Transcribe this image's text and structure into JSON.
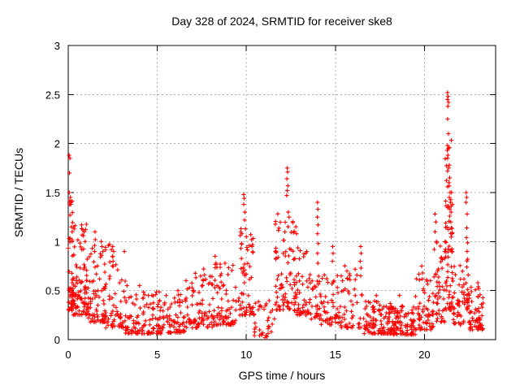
{
  "chart_data": {
    "type": "scatter",
    "title": "Day 328 of 2024, SRMTID for receiver ske8",
    "xlabel": "GPS time / hours",
    "ylabel": "SRMTID / TECUs",
    "xlim": [
      0,
      24
    ],
    "ylim": [
      0,
      3
    ],
    "xticks": [
      [
        0,
        "0"
      ],
      [
        5,
        "5"
      ],
      [
        10,
        "10"
      ],
      [
        15,
        "15"
      ],
      [
        20,
        "20"
      ]
    ],
    "yticks": [
      [
        0,
        "0"
      ],
      [
        0.5,
        "0.5"
      ],
      [
        1,
        "1"
      ],
      [
        1.5,
        "1.5"
      ],
      [
        2,
        "2"
      ],
      [
        2.5,
        "2.5"
      ],
      [
        3,
        "3"
      ]
    ],
    "grid": true,
    "legend_position": "none",
    "marker": {
      "shape": "plus",
      "size": 5,
      "color": "#ff0000"
    },
    "grid_color": "#ababab",
    "axis_color": "#000000",
    "background": "#ffffff",
    "seed": 328,
    "outlier_points": [
      [
        0.05,
        1.88
      ],
      [
        0.09,
        1.85
      ],
      [
        0.07,
        1.7
      ],
      [
        0.06,
        1.5
      ],
      [
        0.12,
        1.45
      ],
      [
        0.1,
        1.42
      ],
      [
        0.16,
        1.4
      ],
      [
        0.14,
        1.38
      ],
      [
        0.1,
        1.27
      ],
      [
        0.18,
        1.15
      ],
      [
        0.22,
        1.1
      ],
      [
        0.75,
        1.17
      ],
      [
        0.82,
        1.12
      ],
      [
        0.9,
        1.1
      ],
      [
        0.85,
        1.06
      ],
      [
        0.95,
        1.0
      ],
      [
        1.5,
        1.1
      ],
      [
        1.52,
        1.02
      ],
      [
        1.48,
        0.96
      ],
      [
        1.85,
        1.0
      ],
      [
        1.9,
        0.95
      ],
      [
        1.95,
        0.9
      ],
      [
        1.88,
        0.86
      ],
      [
        2.5,
        0.95
      ],
      [
        2.55,
        0.9
      ],
      [
        2.48,
        0.85
      ],
      [
        2.52,
        0.8
      ],
      [
        3.3,
        0.55
      ],
      [
        4.0,
        0.55
      ],
      [
        4.5,
        0.45
      ],
      [
        5.5,
        0.45
      ],
      [
        6.3,
        0.46
      ],
      [
        7.6,
        0.72
      ],
      [
        7.65,
        0.66
      ],
      [
        7.58,
        0.6
      ],
      [
        8.25,
        0.85
      ],
      [
        8.3,
        0.78
      ],
      [
        9.7,
        1.13
      ],
      [
        9.75,
        1.08
      ],
      [
        9.85,
        1.48
      ],
      [
        9.88,
        1.44
      ],
      [
        9.85,
        1.38
      ],
      [
        9.92,
        1.3
      ],
      [
        9.9,
        1.22
      ],
      [
        9.95,
        1.13
      ],
      [
        10.0,
        1.05
      ],
      [
        10.3,
        1.02
      ],
      [
        10.32,
        0.95
      ],
      [
        11.05,
        0.02
      ],
      [
        11.15,
        0.03
      ],
      [
        12.3,
        1.75
      ],
      [
        12.32,
        1.71
      ],
      [
        12.28,
        1.64
      ],
      [
        12.33,
        1.57
      ],
      [
        12.3,
        1.52
      ],
      [
        12.27,
        1.47
      ],
      [
        12.35,
        1.3
      ],
      [
        12.4,
        1.25
      ],
      [
        12.78,
        1.15
      ],
      [
        12.82,
        1.08
      ],
      [
        14.0,
        1.4
      ],
      [
        14.02,
        1.33
      ],
      [
        13.99,
        1.25
      ],
      [
        14.03,
        1.17
      ],
      [
        14.0,
        1.08
      ],
      [
        14.04,
        0.98
      ],
      [
        14.0,
        0.88
      ],
      [
        14.02,
        0.78
      ],
      [
        14.85,
        0.95
      ],
      [
        14.87,
        0.88
      ],
      [
        14.84,
        0.8
      ],
      [
        15.65,
        0.7
      ],
      [
        15.68,
        0.62
      ],
      [
        16.42,
        0.95
      ],
      [
        16.45,
        0.88
      ],
      [
        16.4,
        0.8
      ],
      [
        16.44,
        0.73
      ],
      [
        16.42,
        0.65
      ],
      [
        17.3,
        0.45
      ],
      [
        18.6,
        0.45
      ],
      [
        19.85,
        0.75
      ],
      [
        19.9,
        0.68
      ],
      [
        20.6,
        1.28
      ],
      [
        20.64,
        1.2
      ],
      [
        20.6,
        1.1
      ],
      [
        20.68,
        1.0
      ],
      [
        20.55,
        0.92
      ],
      [
        21.3,
        2.52
      ],
      [
        21.33,
        2.48
      ],
      [
        21.3,
        2.45
      ],
      [
        21.36,
        2.42
      ],
      [
        21.32,
        2.38
      ],
      [
        21.3,
        2.25
      ],
      [
        21.35,
        2.1
      ],
      [
        21.3,
        1.98
      ],
      [
        21.34,
        1.95
      ],
      [
        21.28,
        1.93
      ],
      [
        21.32,
        1.88
      ],
      [
        21.3,
        1.85
      ],
      [
        21.4,
        1.78
      ],
      [
        21.36,
        1.75
      ],
      [
        21.3,
        1.72
      ],
      [
        21.42,
        1.65
      ],
      [
        21.38,
        1.6
      ],
      [
        21.3,
        1.56
      ],
      [
        21.44,
        1.5
      ],
      [
        21.4,
        1.45
      ],
      [
        21.46,
        1.4
      ],
      [
        21.35,
        1.36
      ],
      [
        21.5,
        1.3
      ],
      [
        21.42,
        1.26
      ],
      [
        21.48,
        1.2
      ],
      [
        21.52,
        1.14
      ],
      [
        21.55,
        1.08
      ],
      [
        22.35,
        1.5
      ],
      [
        22.37,
        1.45
      ],
      [
        22.34,
        1.4
      ],
      [
        22.4,
        1.28
      ],
      [
        22.38,
        1.14
      ],
      [
        22.36,
        1.04
      ],
      [
        22.4,
        0.9
      ],
      [
        22.43,
        0.82
      ],
      [
        22.38,
        0.74
      ],
      [
        22.46,
        0.66
      ],
      [
        23.0,
        0.58
      ],
      [
        23.05,
        0.52
      ]
    ],
    "density_bands": [
      [
        0.0,
        0.35,
        0.3,
        1.5,
        48,
        1.7
      ],
      [
        0.05,
        1.05,
        0.25,
        1.2,
        85,
        2.0
      ],
      [
        1.0,
        2.1,
        0.18,
        1.05,
        90,
        2.1
      ],
      [
        2.1,
        3.2,
        0.12,
        1.0,
        60,
        2.4
      ],
      [
        3.2,
        5.2,
        0.06,
        0.5,
        115,
        2.0
      ],
      [
        5.2,
        6.6,
        0.07,
        0.5,
        70,
        1.9
      ],
      [
        6.6,
        8.1,
        0.12,
        0.7,
        80,
        2.0
      ],
      [
        8.1,
        9.6,
        0.15,
        0.8,
        85,
        1.9
      ],
      [
        9.6,
        10.45,
        0.25,
        1.1,
        60,
        1.9
      ],
      [
        10.45,
        11.6,
        0.04,
        0.4,
        32,
        1.5
      ],
      [
        11.6,
        12.7,
        0.3,
        1.3,
        80,
        1.9
      ],
      [
        12.7,
        13.4,
        0.25,
        1.0,
        50,
        2.0
      ],
      [
        13.4,
        14.2,
        0.2,
        0.75,
        40,
        1.7
      ],
      [
        14.2,
        15.2,
        0.15,
        0.7,
        48,
        1.8
      ],
      [
        15.2,
        16.6,
        0.12,
        0.8,
        55,
        2.0
      ],
      [
        16.6,
        18.1,
        0.06,
        0.4,
        100,
        1.6
      ],
      [
        18.1,
        19.5,
        0.05,
        0.35,
        95,
        1.6
      ],
      [
        19.5,
        20.5,
        0.1,
        0.7,
        62,
        1.8
      ],
      [
        20.5,
        21.15,
        0.18,
        1.0,
        45,
        1.8
      ],
      [
        21.15,
        21.6,
        0.3,
        2.05,
        70,
        2.0
      ],
      [
        21.6,
        22.25,
        0.15,
        0.8,
        42,
        2.0
      ],
      [
        22.25,
        22.55,
        0.3,
        1.3,
        20,
        1.8
      ],
      [
        22.5,
        23.3,
        0.1,
        0.55,
        60,
        1.8
      ]
    ]
  }
}
